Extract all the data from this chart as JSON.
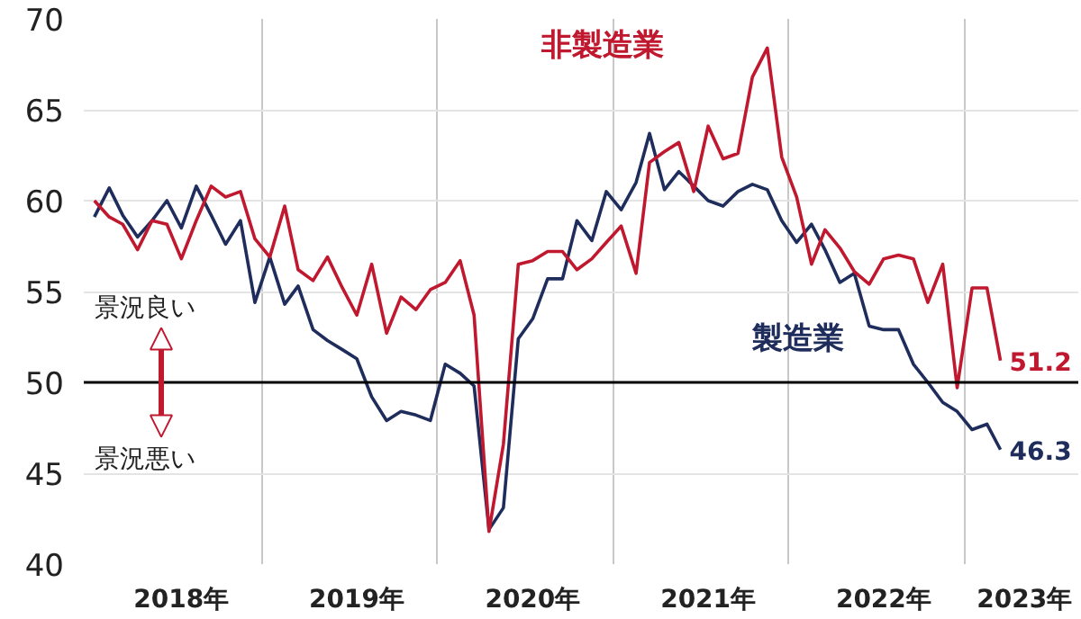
{
  "chart_data": {
    "type": "line",
    "x": [
      "2018-01",
      "2018-02",
      "2018-03",
      "2018-04",
      "2018-05",
      "2018-06",
      "2018-07",
      "2018-08",
      "2018-09",
      "2018-10",
      "2018-11",
      "2018-12",
      "2019-01",
      "2019-02",
      "2019-03",
      "2019-04",
      "2019-05",
      "2019-06",
      "2019-07",
      "2019-08",
      "2019-09",
      "2019-10",
      "2019-11",
      "2019-12",
      "2020-01",
      "2020-02",
      "2020-03",
      "2020-04",
      "2020-05",
      "2020-06",
      "2020-07",
      "2020-08",
      "2020-09",
      "2020-10",
      "2020-11",
      "2020-12",
      "2021-01",
      "2021-02",
      "2021-03",
      "2021-04",
      "2021-05",
      "2021-06",
      "2021-07",
      "2021-08",
      "2021-09",
      "2021-10",
      "2021-11",
      "2021-12",
      "2022-01",
      "2022-02",
      "2022-03",
      "2022-04",
      "2022-05",
      "2022-06",
      "2022-07",
      "2022-08",
      "2022-09",
      "2022-10",
      "2022-11",
      "2022-12",
      "2023-01",
      "2023-02",
      "2023-03"
    ],
    "series": [
      {
        "name": "製造業",
        "color": "#1f2d5c",
        "values": [
          59.1,
          60.7,
          59.2,
          58.0,
          58.9,
          60.0,
          58.5,
          60.8,
          59.2,
          57.6,
          58.9,
          54.4,
          56.9,
          54.3,
          55.3,
          52.9,
          52.3,
          51.8,
          51.3,
          49.2,
          47.9,
          48.4,
          48.2,
          47.9,
          51.0,
          50.5,
          49.8,
          41.9,
          43.1,
          52.4,
          53.5,
          55.7,
          55.7,
          58.9,
          57.8,
          60.5,
          59.5,
          61.0,
          63.7,
          60.6,
          61.6,
          60.8,
          60.0,
          59.7,
          60.5,
          60.9,
          60.6,
          58.9,
          57.7,
          58.7,
          57.3,
          55.5,
          56.0,
          53.1,
          52.9,
          52.9,
          51.0,
          50.0,
          48.9,
          48.4,
          47.4,
          47.7,
          46.3
        ],
        "value_labels": [
          null,
          null,
          null,
          null,
          null,
          null,
          null,
          null,
          null,
          null,
          null,
          null,
          null,
          null,
          null,
          null,
          null,
          null,
          null,
          null,
          null,
          null,
          null,
          null,
          null,
          null,
          null,
          null,
          null,
          null,
          null,
          null,
          null,
          null,
          null,
          null,
          null,
          null,
          null,
          null,
          null,
          null,
          null,
          null,
          null,
          null,
          null,
          null,
          null,
          null,
          null,
          null,
          null,
          null,
          null,
          null,
          null,
          null,
          null,
          null,
          null,
          null,
          "46.3"
        ]
      },
      {
        "name": "非製造業",
        "color": "#c0182e",
        "values": [
          60.0,
          59.1,
          58.7,
          57.3,
          58.9,
          58.7,
          56.8,
          58.9,
          60.8,
          60.2,
          60.5,
          57.9,
          56.9,
          59.7,
          56.2,
          55.6,
          56.9,
          55.2,
          53.7,
          56.5,
          52.7,
          54.7,
          54.0,
          55.1,
          55.5,
          56.7,
          53.7,
          41.8,
          46.6,
          56.5,
          56.7,
          57.2,
          57.2,
          56.2,
          56.8,
          57.7,
          58.6,
          56.0,
          62.1,
          62.7,
          63.2,
          60.5,
          64.1,
          62.3,
          62.6,
          66.8,
          68.4,
          62.4,
          60.2,
          56.5,
          58.4,
          57.4,
          56.1,
          55.4,
          56.8,
          57.0,
          56.8,
          54.4,
          56.5,
          49.7,
          55.2,
          55.2,
          51.2
        ],
        "value_labels": [
          null,
          null,
          null,
          null,
          null,
          null,
          null,
          null,
          null,
          null,
          null,
          null,
          null,
          null,
          null,
          null,
          null,
          null,
          null,
          null,
          null,
          null,
          null,
          null,
          null,
          null,
          null,
          null,
          null,
          null,
          null,
          null,
          null,
          null,
          null,
          null,
          null,
          null,
          null,
          null,
          null,
          null,
          null,
          null,
          null,
          null,
          null,
          null,
          null,
          null,
          null,
          null,
          null,
          null,
          null,
          null,
          null,
          null,
          null,
          null,
          null,
          null,
          "51.2"
        ]
      }
    ],
    "xlim": [
      "2017-12-10",
      "2023-08-10"
    ],
    "xticks": [
      {
        "value": "2018-07-01",
        "label": "2018年"
      },
      {
        "value": "2019-07-01",
        "label": "2019年"
      },
      {
        "value": "2020-07-01",
        "label": "2020年"
      },
      {
        "value": "2021-07-01",
        "label": "2021年"
      },
      {
        "value": "2022-07-01",
        "label": "2022年"
      },
      {
        "value": "2023-04-20",
        "label": "2023年"
      },
      {
        "value": "2018-12-16",
        "label": null
      },
      {
        "value": "2019-12-16",
        "label": null
      },
      {
        "value": "2020-12-16",
        "label": null
      },
      {
        "value": "2021-12-16",
        "label": null
      },
      {
        "value": "2022-12-16",
        "label": null
      }
    ],
    "ylim": [
      40,
      70
    ],
    "yticks": [
      40,
      45,
      50,
      55,
      60,
      65,
      70
    ],
    "grid": true,
    "marker": "none",
    "line_style": "solid",
    "ref_lines": [
      {
        "axis": "y",
        "value": 50,
        "color": "#000000"
      }
    ],
    "annotations": [
      "景況良い",
      "景況悪い"
    ]
  }
}
